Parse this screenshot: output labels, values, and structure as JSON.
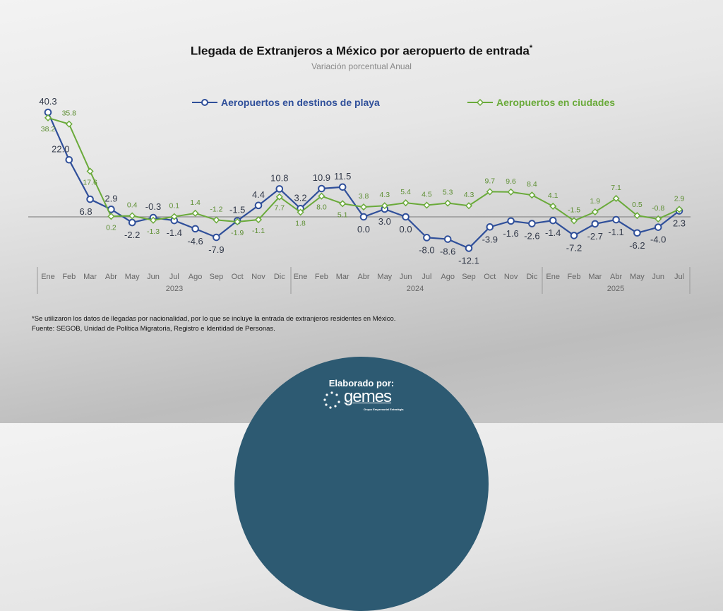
{
  "chart_data": {
    "type": "line",
    "title": "Llegada de Extranjeros a México por aeropuerto de entrada",
    "title_mark": "*",
    "subtitle": "Variación porcentual Anual",
    "categories": [
      "Ene",
      "Feb",
      "Mar",
      "Abr",
      "May",
      "Jun",
      "Jul",
      "Ago",
      "Sep",
      "Oct",
      "Nov",
      "Dic",
      "Ene",
      "Feb",
      "Mar",
      "Abr",
      "May",
      "Jun",
      "Jul",
      "Ago",
      "Sep",
      "Oct",
      "Nov",
      "Dic",
      "Ene",
      "Feb",
      "Mar",
      "Abr",
      "May",
      "Jun",
      "Jul"
    ],
    "years": [
      "2023",
      "2024",
      "2025"
    ],
    "legend_position": "top",
    "grid": false,
    "series": [
      {
        "name": "Aeropuertos en destinos de playa",
        "color": "#2f4f9a",
        "marker": "circle",
        "values": [
          40.3,
          22.0,
          6.8,
          2.9,
          -2.2,
          -0.3,
          -1.4,
          -4.6,
          -7.9,
          -1.5,
          4.4,
          10.8,
          3.2,
          10.9,
          11.5,
          0.0,
          3.0,
          0.0,
          -8.0,
          -8.6,
          -12.1,
          -3.9,
          -1.6,
          -2.6,
          -1.4,
          -7.2,
          -2.7,
          -1.1,
          -6.2,
          -4.0,
          2.3
        ]
      },
      {
        "name": "Aeropuertos en ciudades",
        "color": "#6aaa3a",
        "marker": "diamond",
        "values": [
          38.2,
          35.8,
          17.6,
          0.2,
          0.4,
          -1.3,
          0.1,
          1.4,
          -1.2,
          -1.9,
          -1.1,
          7.7,
          1.8,
          8.0,
          5.1,
          3.8,
          4.3,
          5.4,
          4.5,
          5.3,
          4.3,
          9.7,
          9.6,
          8.4,
          4.1,
          -1.5,
          1.9,
          7.1,
          0.5,
          -0.8,
          2.9
        ]
      }
    ]
  },
  "footnote": "*Se utilizaron los datos de llegadas por nacionalidad, por lo que se incluye la entrada de extranjeros residentes en México.",
  "source": "Fuente: SEGOB, Unidad de Política Migratoria, Registro e Identidad de Personas.",
  "credit": {
    "label": "Elaborado por:",
    "logo_text": "gemes",
    "logo_tagline": "Grupo Empresarial Estratégia"
  }
}
